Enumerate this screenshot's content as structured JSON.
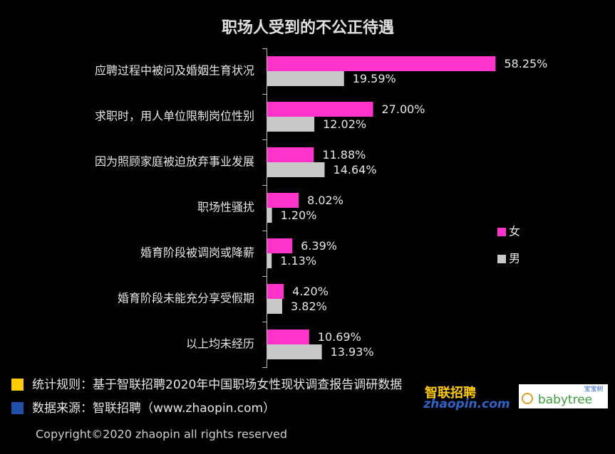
{
  "chart_data": {
    "type": "bar",
    "orientation": "horizontal",
    "title": "职场人受到的不公正待遇",
    "categories": [
      "应聘过程中被问及婚姻生育状况",
      "求职时，用人单位限制岗位性别",
      "因为照顾家庭被迫放弃事业发展",
      "职场性骚扰",
      "婚育阶段被调岗或降薪",
      "婚育阶段未能充分享受假期",
      "以上均未经历"
    ],
    "series": [
      {
        "name": "女",
        "color": "#ff33cc",
        "values": [
          58.25,
          27.0,
          11.88,
          8.02,
          6.39,
          4.2,
          10.69
        ],
        "value_labels": [
          "58.25%",
          "27.00%",
          "11.88%",
          "8.02%",
          "6.39%",
          "4.20%",
          "10.69%"
        ]
      },
      {
        "name": "男",
        "color": "#c8c8c8",
        "values": [
          19.59,
          12.02,
          14.64,
          1.2,
          1.13,
          3.82,
          13.93
        ],
        "value_labels": [
          "19.59%",
          "12.02%",
          "14.64%",
          "1.20%",
          "1.13%",
          "3.82%",
          "13.93%"
        ]
      }
    ],
    "xlim": [
      0,
      60
    ],
    "legend": "right"
  },
  "footer": {
    "notes": [
      {
        "text": "统计规则：基于智联招聘2020年中国职场女性现状调查报告调研数据",
        "color": "#ffcc00"
      },
      {
        "text": "数据来源：智联招聘（www.zhaopin.com）",
        "color": "#1f4fa8"
      }
    ],
    "copyright": "Copyright©2020 zhaopin all rights reserved",
    "logos": {
      "zhaopin_cn": "智联招聘",
      "zhaopin_en": "zhaopin.com",
      "babytree_cn": "宝宝树",
      "babytree_en": "babytree"
    }
  }
}
